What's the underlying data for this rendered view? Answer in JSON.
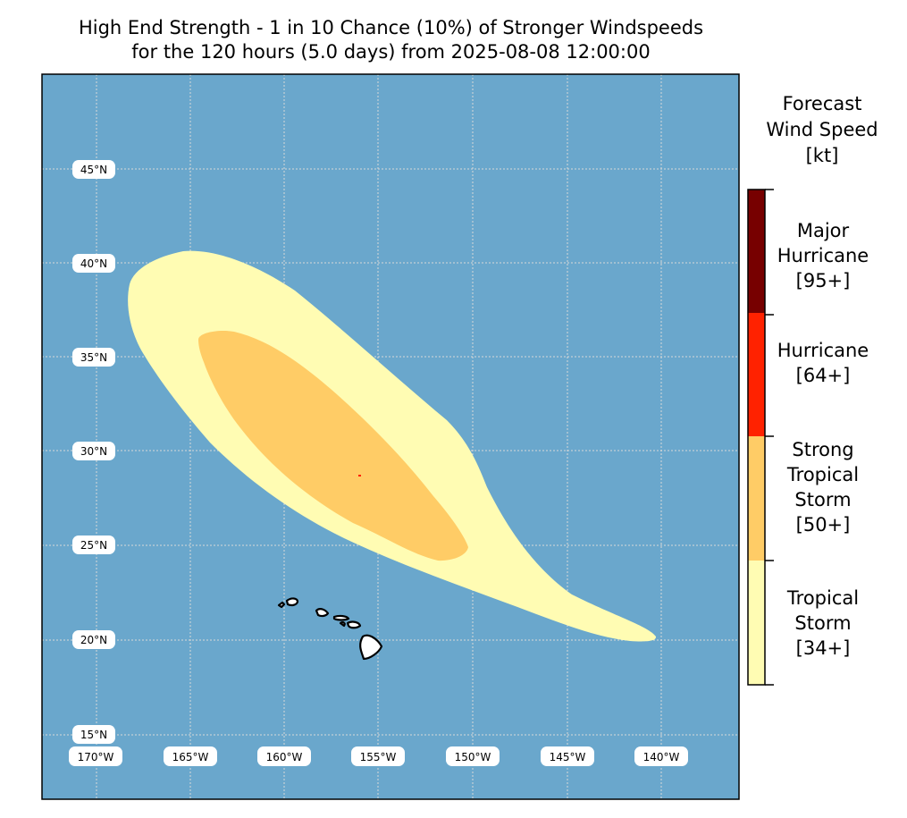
{
  "title": {
    "line1": "High End Strength - 1 in 10 Chance (10%) of Stronger Windspeeds",
    "line2": "for the 120 hours (5.0 days) from 2025-08-08 12:00:00"
  },
  "colors": {
    "ocean": "#6aa7cc",
    "tropical_storm": "#fffcb3",
    "strong_tropical_storm": "#ffcc66",
    "hurricane": "#ff2200",
    "major_hurricane": "#770000",
    "grid": "#d8d8d8",
    "land": "#ffffff"
  },
  "map": {
    "lat_labels": [
      "45°N",
      "40°N",
      "35°N",
      "30°N",
      "25°N",
      "20°N",
      "15°N"
    ],
    "lon_labels": [
      "170°W",
      "165°W",
      "160°W",
      "155°W",
      "150°W",
      "145°W",
      "140°W"
    ]
  },
  "colorbar": {
    "title_lines": [
      "Forecast",
      "Wind Speed",
      "[kt]"
    ],
    "categories": [
      {
        "lines": [
          "Major",
          "Hurricane",
          "[95+]"
        ],
        "color_key": "major_hurricane"
      },
      {
        "lines": [
          "Hurricane",
          "[64+]"
        ],
        "color_key": "hurricane"
      },
      {
        "lines": [
          "Strong",
          "Tropical",
          "Storm",
          "[50+]"
        ],
        "color_key": "strong_tropical_storm"
      },
      {
        "lines": [
          "Tropical",
          "Storm",
          "[34+]"
        ],
        "color_key": "tropical_storm"
      }
    ]
  }
}
